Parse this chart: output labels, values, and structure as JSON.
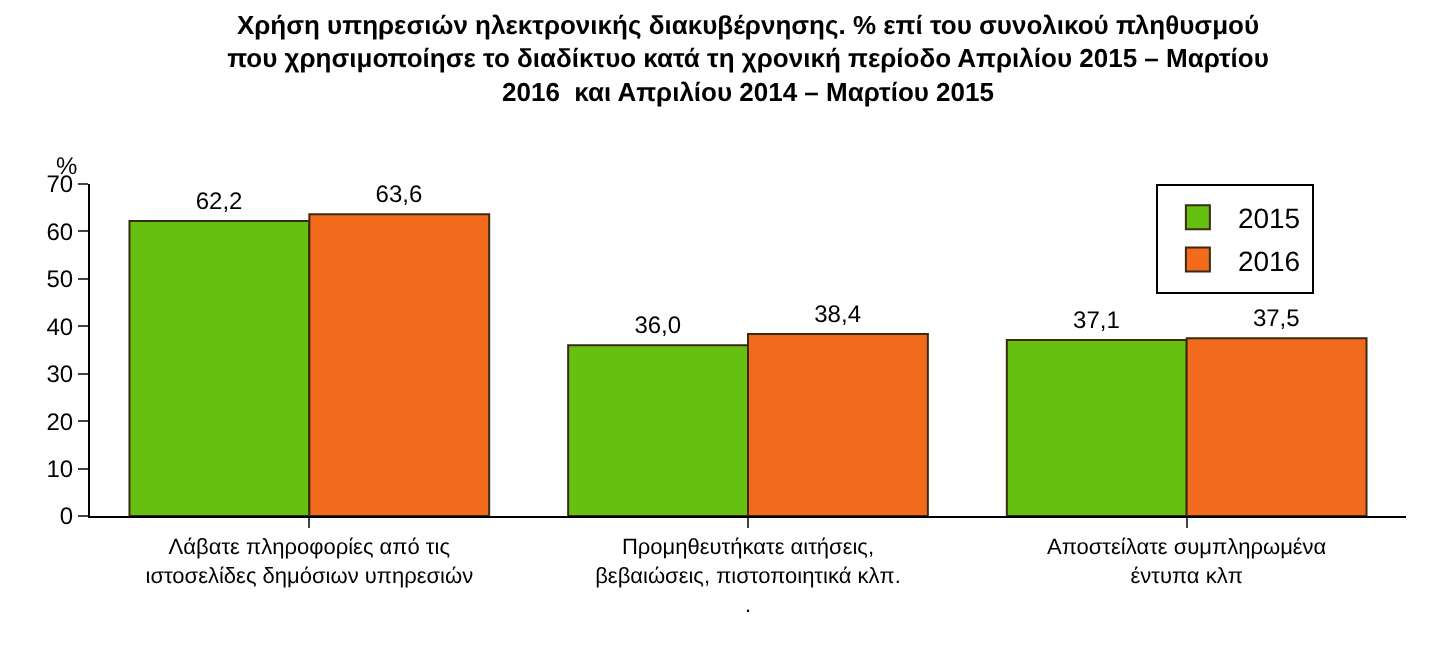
{
  "chart_data": {
    "type": "bar",
    "title": "Χρήση υπηρεσιών ηλεκτρονικής διακυβέρνησης. % επί του συνολικού πληθυσμού\nπου χρησιμοποίησε το διαδίκτυο κατά τη χρονική περίοδο Απριλίου 2015 – Μαρτίου\n2016  και Απριλίου 2014 – Μαρτίου 2015",
    "ylabel": "%",
    "categories": [
      "Λάβατε πληροφορίες από τις ιστοσελίδες δημόσιων υπηρεσιών",
      "Προμηθευτήκατε αιτήσεις, βεβαιώσεις, πιστοποιητικά κλπ. .",
      "Αποστείλατε συμπληρωμένα έντυπα κλπ"
    ],
    "series": [
      {
        "name": "2015",
        "color": "#66c010",
        "values": [
          62.2,
          36.0,
          37.1
        ]
      },
      {
        "name": "2016",
        "color": "#f26a1b",
        "values": [
          63.6,
          38.4,
          37.5
        ]
      }
    ],
    "value_labels": [
      [
        "62,2",
        "36,0",
        "37,1"
      ],
      [
        "63,6",
        "38,4",
        "37,5"
      ]
    ],
    "ylim": [
      0,
      70
    ],
    "yticks": [
      0,
      10,
      20,
      30,
      40,
      50,
      60,
      70
    ],
    "legend": "top right"
  }
}
